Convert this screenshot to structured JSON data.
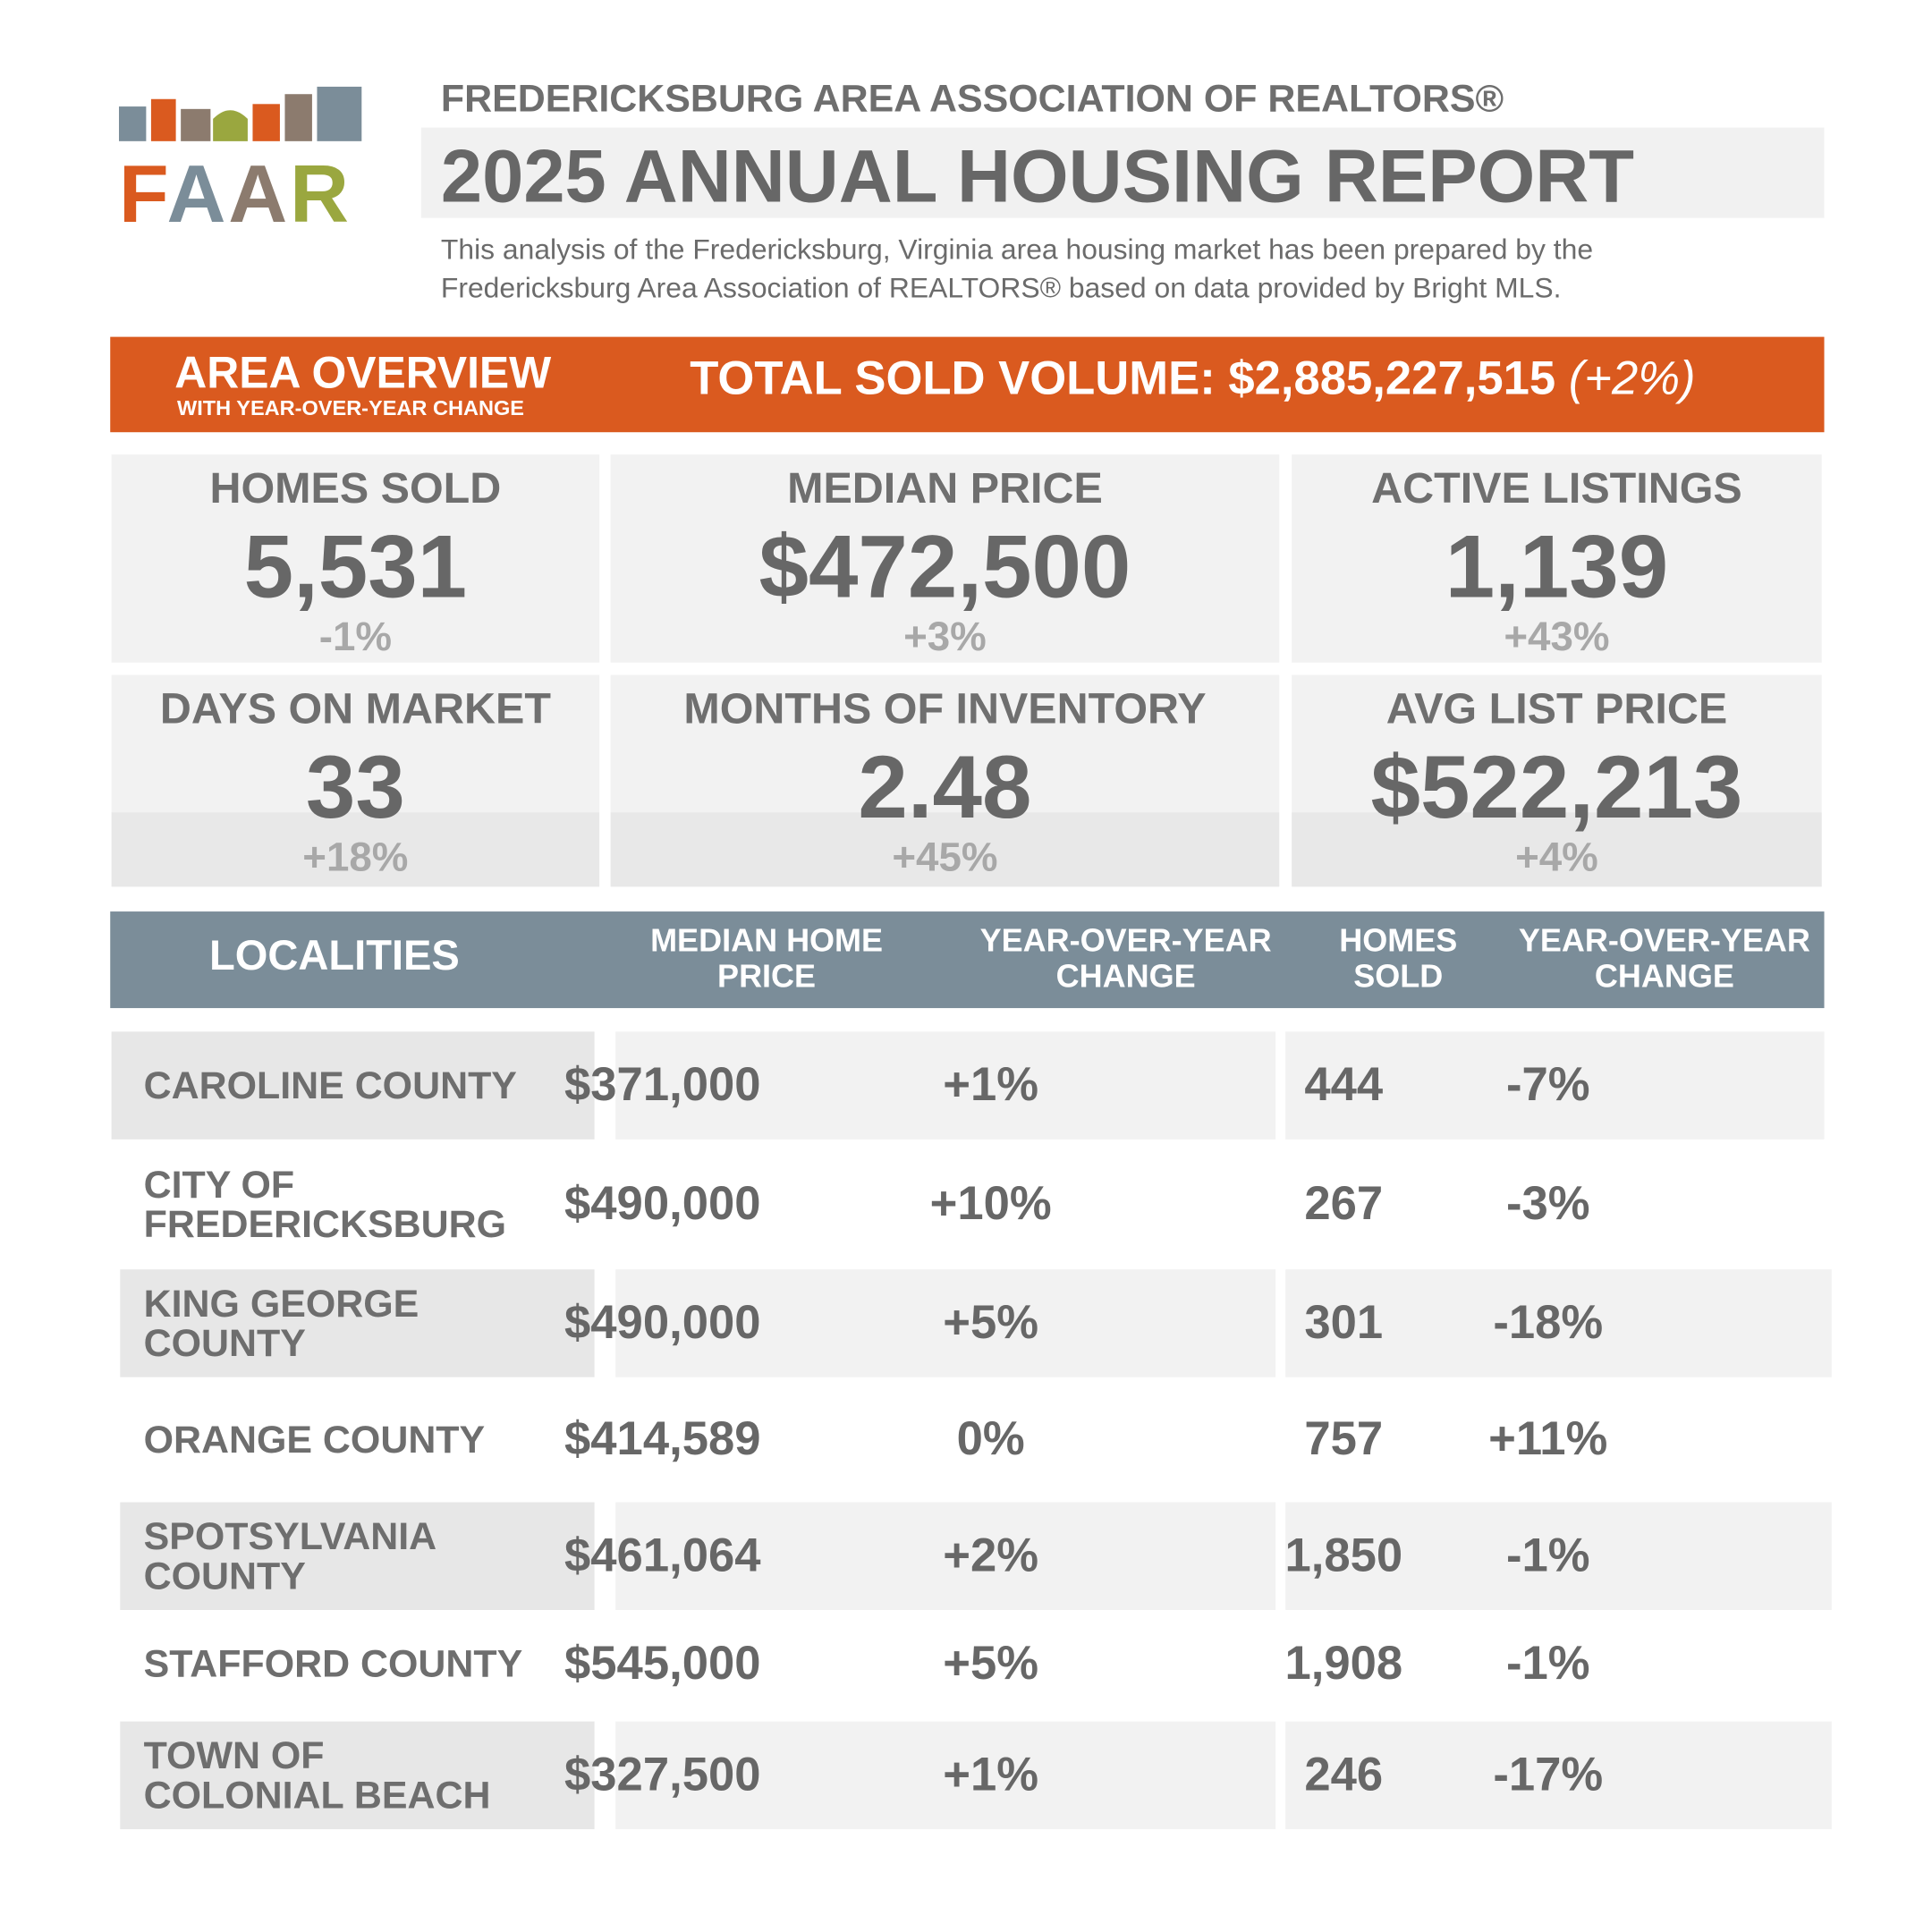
{
  "logo": {
    "letters": [
      "F",
      "A",
      "A",
      "R"
    ]
  },
  "header": {
    "org": "FREDERICKSBURG AREA ASSOCIATION OF REALTORS®",
    "title": "2025 ANNUAL HOUSING REPORT",
    "description": "This analysis of the Fredericksburg, Virginia area housing market has been prepared by the Fredericksburg Area Association of REALTORS® based on data provided by Bright MLS."
  },
  "banner": {
    "title": "AREA OVERVIEW",
    "subtitle": "WITH YEAR-OVER-YEAR CHANGE",
    "volume_label": "TOTAL SOLD VOLUME:",
    "volume": "$2,885,227,515",
    "volume_change": "(+2%)"
  },
  "stats": [
    {
      "label": "HOMES SOLD",
      "value": "5,531",
      "change": "-1%"
    },
    {
      "label": "MEDIAN PRICE",
      "value": "$472,500",
      "change": "+3%"
    },
    {
      "label": "ACTIVE LISTINGS",
      "value": "1,139",
      "change": "+43%"
    },
    {
      "label": "DAYS ON MARKET",
      "value": "33",
      "change": "+18%"
    },
    {
      "label": "MONTHS OF INVENTORY",
      "value": "2.48",
      "change": "+45%"
    },
    {
      "label": "AVG LIST PRICE",
      "value": "$522,213",
      "change": "+4%"
    }
  ],
  "table": {
    "columns": [
      "LOCALITIES",
      "MEDIAN HOME PRICE",
      "YEAR-OVER-YEAR CHANGE",
      "HOMES SOLD",
      "YEAR-OVER-YEAR CHANGE"
    ],
    "rows": [
      [
        "CAROLINE COUNTY",
        "$371,000",
        "+1%",
        "444",
        "-7%"
      ],
      [
        "CITY OF FREDERICKSBURG",
        "$490,000",
        "+10%",
        "267",
        "-3%"
      ],
      [
        "KING GEORGE COUNTY",
        "$490,000",
        "+5%",
        "301",
        "-18%"
      ],
      [
        "ORANGE COUNTY",
        "$414,589",
        "0%",
        "757",
        "+11%"
      ],
      [
        "SPOTSYLVANIA COUNTY",
        "$461,064",
        "+2%",
        "1,850",
        "-1%"
      ],
      [
        "STAFFORD COUNTY",
        "$545,000",
        "+5%",
        "1,908",
        "-1%"
      ],
      [
        "TOWN OF COLONIAL BEACH",
        "$327,500",
        "+1%",
        "246",
        "-17%"
      ]
    ]
  }
}
